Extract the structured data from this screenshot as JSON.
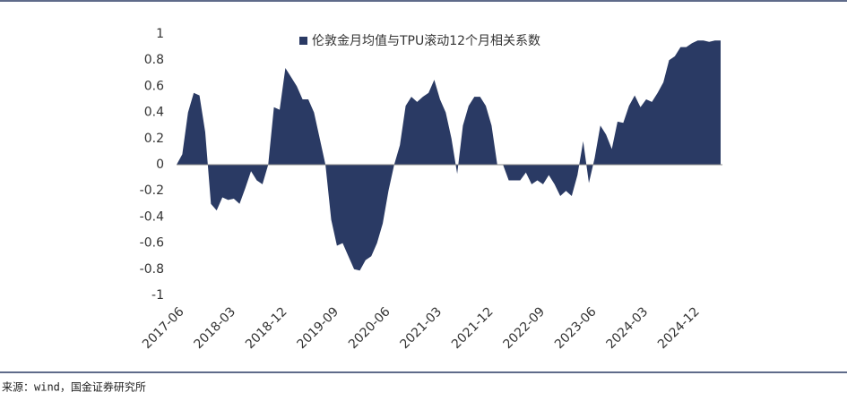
{
  "chart_data": {
    "type": "area",
    "legend": "top",
    "source": "来源：wind，国金证券研究所",
    "categories": [
      "2017-06",
      null,
      null,
      null,
      null,
      null,
      null,
      null,
      null,
      "2018-03",
      null,
      null,
      null,
      null,
      null,
      null,
      null,
      null,
      "2018-12",
      null,
      null,
      null,
      null,
      null,
      null,
      null,
      null,
      "2019-09",
      null,
      null,
      null,
      null,
      null,
      null,
      null,
      null,
      "2020-06",
      null,
      null,
      null,
      null,
      null,
      null,
      null,
      null,
      "2021-03",
      null,
      null,
      null,
      null,
      null,
      null,
      null,
      null,
      "2021-12",
      null,
      null,
      null,
      null,
      null,
      null,
      null,
      null,
      "2022-09",
      null,
      null,
      null,
      null,
      null,
      null,
      null,
      null,
      "2023-06",
      null,
      null,
      null,
      null,
      null,
      null,
      null,
      null,
      "2024-03",
      null,
      null,
      null,
      null,
      null,
      null,
      null,
      null,
      "2024-12",
      null,
      null,
      null,
      null,
      null
    ],
    "series": [
      {
        "name": "伦敦金月均值与TPU滚动12个月相关系数",
        "color": "#2a3a64",
        "values": [
          0.0,
          0.08,
          0.4,
          0.55,
          0.53,
          0.25,
          -0.3,
          -0.35,
          -0.25,
          -0.27,
          -0.26,
          -0.3,
          -0.18,
          -0.05,
          -0.12,
          -0.15,
          0.0,
          0.44,
          0.42,
          0.74,
          0.67,
          0.6,
          0.5,
          0.5,
          0.4,
          0.2,
          0.0,
          -0.42,
          -0.62,
          -0.6,
          -0.7,
          -0.8,
          -0.81,
          -0.73,
          -0.7,
          -0.6,
          -0.45,
          -0.2,
          0.0,
          0.15,
          0.45,
          0.52,
          0.48,
          0.52,
          0.55,
          0.65,
          0.5,
          0.4,
          0.2,
          -0.07,
          0.3,
          0.45,
          0.52,
          0.52,
          0.45,
          0.3,
          0.0,
          0.0,
          -0.12,
          -0.12,
          -0.12,
          -0.06,
          -0.15,
          -0.12,
          -0.15,
          -0.08,
          -0.15,
          -0.24,
          -0.2,
          -0.24,
          -0.08,
          0.18,
          -0.14,
          0.05,
          0.3,
          0.23,
          0.12,
          0.33,
          0.32,
          0.45,
          0.53,
          0.44,
          0.5,
          0.48,
          0.55,
          0.63,
          0.8,
          0.83,
          0.9,
          0.9,
          0.93,
          0.95,
          0.95,
          0.94,
          0.95,
          0.95
        ]
      }
    ],
    "ylim": [
      -1,
      1
    ],
    "yticks": [
      1,
      0.8,
      0.6,
      0.4,
      0.2,
      0,
      -0.2,
      -0.4,
      -0.6,
      -0.8,
      -1
    ]
  }
}
